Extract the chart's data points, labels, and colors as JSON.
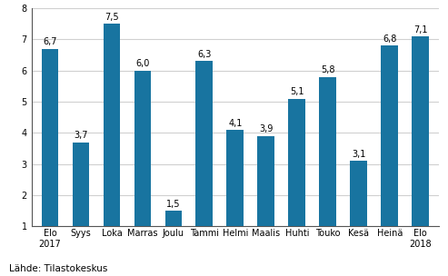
{
  "categories": [
    "Elo\n2017",
    "Syys",
    "Loka",
    "Marras",
    "Joulu",
    "Tammi",
    "Helmi",
    "Maalis",
    "Huhti",
    "Touko",
    "Kesä",
    "Heinä",
    "Elo\n2018"
  ],
  "values": [
    6.7,
    3.7,
    7.5,
    6.0,
    1.5,
    6.3,
    4.1,
    3.9,
    5.1,
    5.8,
    3.1,
    6.8,
    7.1
  ],
  "bar_color": "#1874a0",
  "ylim": [
    1,
    8
  ],
  "yticks": [
    1,
    2,
    3,
    4,
    5,
    6,
    7,
    8
  ],
  "source": "Lähde: Tilastokeskus",
  "label_fontsize": 7.0,
  "tick_fontsize": 7.0,
  "source_fontsize": 7.5,
  "background_color": "#ffffff",
  "grid_color": "#d0d0d0",
  "bar_width": 0.55
}
